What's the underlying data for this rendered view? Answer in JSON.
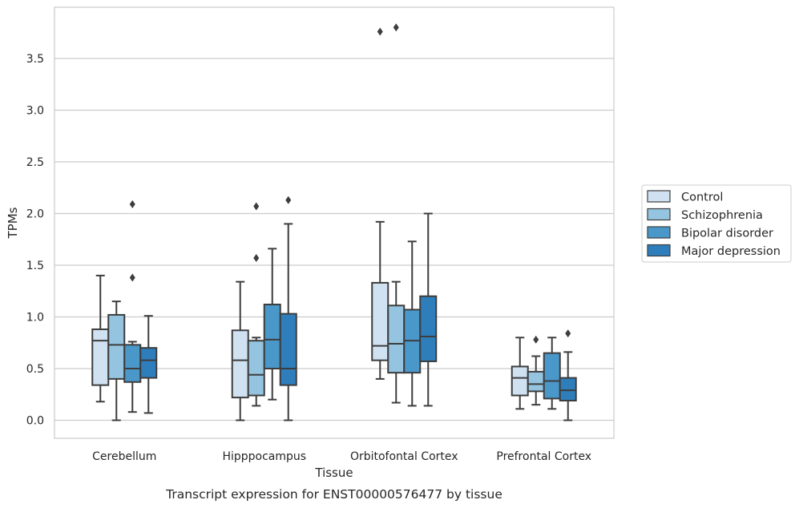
{
  "chart_data": {
    "type": "boxplot",
    "caption": "Transcript expression for ENST00000576477 by tissue",
    "xlabel": "Tissue",
    "ylabel": "TPMs",
    "ylim": [
      -0.18,
      3.98
    ],
    "yticks": [
      0.0,
      0.5,
      1.0,
      1.5,
      2.0,
      2.5,
      3.0,
      3.5
    ],
    "ytick_labels": [
      "0.0",
      "0.5",
      "1.0",
      "1.5",
      "2.0",
      "2.5",
      "3.0",
      "3.5"
    ],
    "grid": "horizontal",
    "legend_position": "right",
    "categories": [
      "Cerebellum",
      "Hipppocampus",
      "Orbitofontal Cortex",
      "Prefrontal Cortex"
    ],
    "series": [
      {
        "name": "Control",
        "color": "#d0e1f2",
        "boxes": [
          {
            "whislo": 0.18,
            "q1": 0.34,
            "med": 0.77,
            "q3": 0.88,
            "whishi": 1.4,
            "fliers": []
          },
          {
            "whislo": 0.0,
            "q1": 0.22,
            "med": 0.58,
            "q3": 0.87,
            "whishi": 1.34,
            "fliers": []
          },
          {
            "whislo": 0.4,
            "q1": 0.58,
            "med": 0.72,
            "q3": 1.33,
            "whishi": 1.92,
            "fliers": [
              3.76
            ]
          },
          {
            "whislo": 0.11,
            "q1": 0.24,
            "med": 0.41,
            "q3": 0.52,
            "whishi": 0.8,
            "fliers": []
          }
        ]
      },
      {
        "name": "Schizophrenia",
        "color": "#94c4df",
        "boxes": [
          {
            "whislo": 0.0,
            "q1": 0.4,
            "med": 0.73,
            "q3": 1.02,
            "whishi": 1.15,
            "fliers": []
          },
          {
            "whislo": 0.14,
            "q1": 0.24,
            "med": 0.44,
            "q3": 0.77,
            "whishi": 0.8,
            "fliers": [
              1.57,
              2.07
            ]
          },
          {
            "whislo": 0.17,
            "q1": 0.46,
            "med": 0.74,
            "q3": 1.11,
            "whishi": 1.34,
            "fliers": [
              3.8
            ]
          },
          {
            "whislo": 0.15,
            "q1": 0.28,
            "med": 0.35,
            "q3": 0.47,
            "whishi": 0.62,
            "fliers": [
              0.78
            ]
          }
        ]
      },
      {
        "name": "Bipolar disorder",
        "color": "#4a98c9",
        "boxes": [
          {
            "whislo": 0.08,
            "q1": 0.37,
            "med": 0.5,
            "q3": 0.73,
            "whishi": 0.76,
            "fliers": [
              1.38,
              2.09
            ]
          },
          {
            "whislo": 0.2,
            "q1": 0.5,
            "med": 0.78,
            "q3": 1.12,
            "whishi": 1.66,
            "fliers": []
          },
          {
            "whislo": 0.14,
            "q1": 0.46,
            "med": 0.77,
            "q3": 1.07,
            "whishi": 1.73,
            "fliers": []
          },
          {
            "whislo": 0.11,
            "q1": 0.21,
            "med": 0.38,
            "q3": 0.65,
            "whishi": 0.8,
            "fliers": []
          }
        ]
      },
      {
        "name": "Major depression",
        "color": "#2e7ebc",
        "boxes": [
          {
            "whislo": 0.07,
            "q1": 0.41,
            "med": 0.58,
            "q3": 0.7,
            "whishi": 1.01,
            "fliers": []
          },
          {
            "whislo": 0.0,
            "q1": 0.34,
            "med": 0.5,
            "q3": 1.03,
            "whishi": 1.9,
            "fliers": [
              2.13
            ]
          },
          {
            "whislo": 0.14,
            "q1": 0.57,
            "med": 0.81,
            "q3": 1.2,
            "whishi": 2.0,
            "fliers": []
          },
          {
            "whislo": 0.0,
            "q1": 0.19,
            "med": 0.29,
            "q3": 0.41,
            "whishi": 0.66,
            "fliers": [
              0.84
            ]
          }
        ]
      }
    ]
  }
}
